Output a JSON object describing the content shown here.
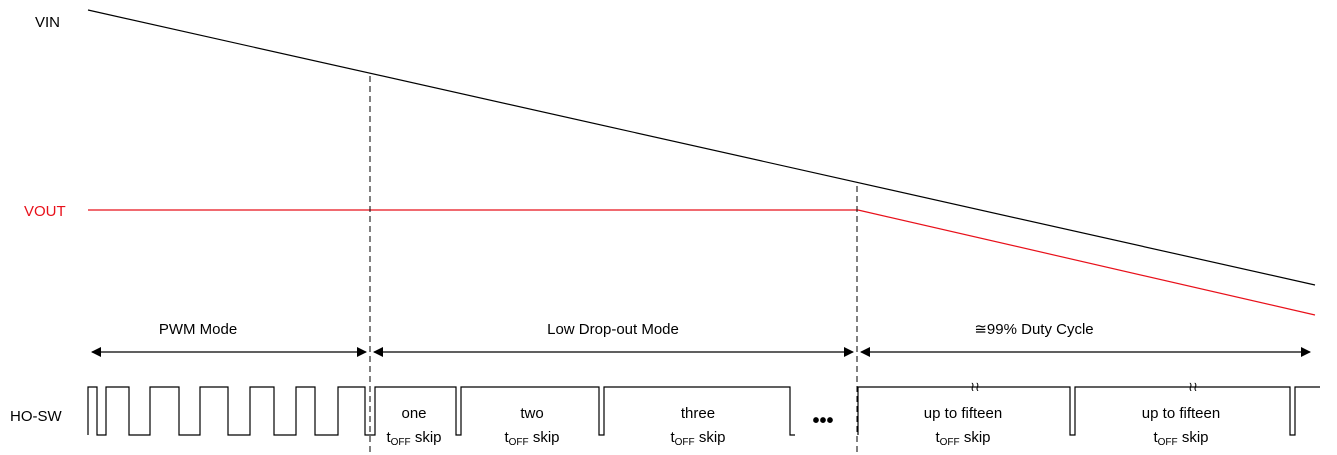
{
  "colors": {
    "vin": "#000000",
    "vout": "#e8101a"
  },
  "signals": {
    "vin": "VIN",
    "vout": "VOUT",
    "ho_sw": "HO-SW"
  },
  "regions": [
    {
      "label": "PWM Mode"
    },
    {
      "label": "Low Drop-out Mode"
    },
    {
      "label": "≅99% Duty Cycle"
    }
  ],
  "ellipsis": "•••",
  "off_time_symbol": {
    "main": "t",
    "subscript": "OFF",
    "suffix": " skip"
  },
  "skip_labels": [
    {
      "line1": "one"
    },
    {
      "line1": "two"
    },
    {
      "line1": "three"
    },
    {
      "line1": "up to fifteen"
    },
    {
      "line1": "up to fifteen"
    }
  ],
  "break_mark": "≀≀"
}
